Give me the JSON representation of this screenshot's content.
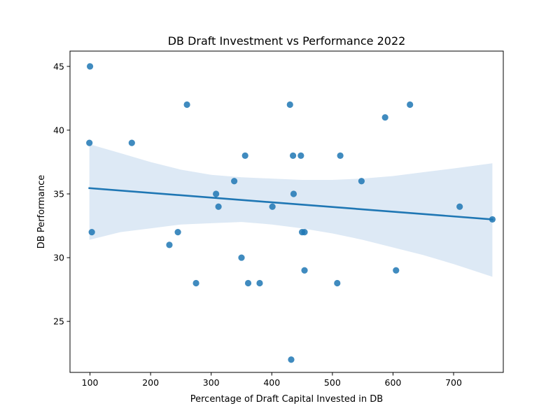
{
  "chart_data": {
    "type": "scatter",
    "title": "DB Draft Investment vs Performance 2022",
    "xlabel": "Percentage of Draft Capital Invested in DB",
    "ylabel": "DB Performance",
    "xlim": [
      67,
      782
    ],
    "ylim": [
      21,
      46.2
    ],
    "xticks": [
      100,
      200,
      300,
      400,
      500,
      600,
      700
    ],
    "yticks": [
      25,
      30,
      35,
      40,
      45
    ],
    "grid": false,
    "legend": "none",
    "colors": {
      "points": "#1f77b4",
      "regression_line": "#1f77b4",
      "confidence_band": "#c6dbef"
    },
    "points": [
      {
        "x": 100,
        "y": 45
      },
      {
        "x": 99,
        "y": 39
      },
      {
        "x": 103,
        "y": 32
      },
      {
        "x": 169,
        "y": 39
      },
      {
        "x": 231,
        "y": 31
      },
      {
        "x": 245,
        "y": 32
      },
      {
        "x": 260,
        "y": 42
      },
      {
        "x": 275,
        "y": 28
      },
      {
        "x": 308,
        "y": 35
      },
      {
        "x": 312,
        "y": 34
      },
      {
        "x": 338,
        "y": 36
      },
      {
        "x": 350,
        "y": 30
      },
      {
        "x": 356,
        "y": 38
      },
      {
        "x": 361,
        "y": 28
      },
      {
        "x": 380,
        "y": 28
      },
      {
        "x": 401,
        "y": 34
      },
      {
        "x": 430,
        "y": 42
      },
      {
        "x": 432,
        "y": 22
      },
      {
        "x": 435,
        "y": 38
      },
      {
        "x": 436,
        "y": 35
      },
      {
        "x": 448,
        "y": 38
      },
      {
        "x": 450,
        "y": 32
      },
      {
        "x": 454,
        "y": 32
      },
      {
        "x": 454,
        "y": 29
      },
      {
        "x": 508,
        "y": 28
      },
      {
        "x": 513,
        "y": 38
      },
      {
        "x": 548,
        "y": 36
      },
      {
        "x": 587,
        "y": 41
      },
      {
        "x": 605,
        "y": 29
      },
      {
        "x": 628,
        "y": 42
      },
      {
        "x": 710,
        "y": 34
      },
      {
        "x": 764,
        "y": 33
      }
    ],
    "regression": {
      "x": [
        99,
        764
      ],
      "y": [
        35.45,
        33.0
      ]
    },
    "confidence_band": {
      "x": [
        99,
        150,
        200,
        250,
        300,
        350,
        400,
        450,
        500,
        550,
        600,
        650,
        700,
        764
      ],
      "upper": [
        38.9,
        38.2,
        37.5,
        36.9,
        36.5,
        36.3,
        36.2,
        36.1,
        36.1,
        36.2,
        36.4,
        36.7,
        37.0,
        37.4
      ],
      "lower": [
        31.4,
        32.0,
        32.3,
        32.6,
        32.7,
        32.8,
        32.6,
        32.3,
        31.9,
        31.4,
        30.8,
        30.2,
        29.5,
        28.5
      ]
    }
  }
}
